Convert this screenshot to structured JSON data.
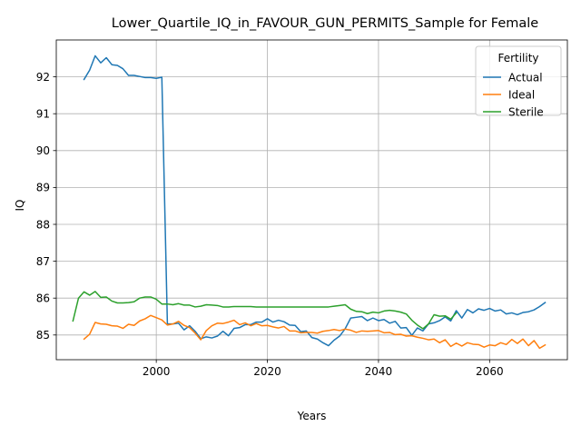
{
  "chart_data": {
    "type": "line",
    "title": "Lower_Quartile_IQ_in_FAVOUR_GUN_PERMITS_Sample for Female",
    "xlabel": "Years",
    "ylabel": "IQ",
    "xlim": [
      1982,
      2074
    ],
    "ylim": [
      84.33,
      93.0
    ],
    "x_ticks": [
      2000,
      2020,
      2040,
      2060
    ],
    "y_ticks": [
      85,
      86,
      87,
      88,
      89,
      90,
      91,
      92
    ],
    "grid": true,
    "legend": {
      "title": "Fertility",
      "position": "top-right"
    },
    "series": [
      {
        "name": "Actual",
        "color": "#1f77b4",
        "points": [
          [
            1987,
            91.93
          ],
          [
            1988,
            92.18
          ],
          [
            1989,
            92.57
          ],
          [
            1990,
            92.38
          ],
          [
            1991,
            92.52
          ],
          [
            1992,
            92.33
          ],
          [
            1993,
            92.31
          ],
          [
            1994,
            92.22
          ],
          [
            1995,
            92.04
          ],
          [
            1996,
            92.04
          ],
          [
            1997,
            92.01
          ],
          [
            1998,
            91.98
          ],
          [
            1999,
            91.98
          ],
          [
            2000,
            91.96
          ],
          [
            2001,
            91.99
          ],
          [
            2002,
            85.3
          ],
          [
            2003,
            85.3
          ],
          [
            2004,
            85.32
          ],
          [
            2005,
            85.14
          ],
          [
            2006,
            85.25
          ],
          [
            2007,
            85.1
          ],
          [
            2008,
            84.9
          ],
          [
            2009,
            84.95
          ],
          [
            2010,
            84.92
          ],
          [
            2011,
            84.97
          ],
          [
            2012,
            85.1
          ],
          [
            2013,
            84.98
          ],
          [
            2014,
            85.18
          ],
          [
            2015,
            85.2
          ],
          [
            2016,
            85.28
          ],
          [
            2017,
            85.28
          ],
          [
            2018,
            85.35
          ],
          [
            2019,
            85.35
          ],
          [
            2020,
            85.44
          ],
          [
            2021,
            85.35
          ],
          [
            2022,
            85.4
          ],
          [
            2023,
            85.36
          ],
          [
            2024,
            85.27
          ],
          [
            2025,
            85.26
          ],
          [
            2026,
            85.09
          ],
          [
            2027,
            85.11
          ],
          [
            2028,
            84.93
          ],
          [
            2029,
            84.89
          ],
          [
            2030,
            84.79
          ],
          [
            2031,
            84.71
          ],
          [
            2032,
            84.86
          ],
          [
            2033,
            84.97
          ],
          [
            2034,
            85.17
          ],
          [
            2035,
            85.46
          ],
          [
            2036,
            85.48
          ],
          [
            2037,
            85.5
          ],
          [
            2038,
            85.39
          ],
          [
            2039,
            85.46
          ],
          [
            2040,
            85.39
          ],
          [
            2041,
            85.42
          ],
          [
            2042,
            85.32
          ],
          [
            2043,
            85.37
          ],
          [
            2044,
            85.19
          ],
          [
            2045,
            85.2
          ],
          [
            2046,
            84.99
          ],
          [
            2047,
            85.19
          ],
          [
            2048,
            85.11
          ],
          [
            2049,
            85.3
          ],
          [
            2050,
            85.33
          ],
          [
            2051,
            85.39
          ],
          [
            2052,
            85.49
          ],
          [
            2053,
            85.38
          ],
          [
            2054,
            85.66
          ],
          [
            2055,
            85.46
          ],
          [
            2056,
            85.69
          ],
          [
            2057,
            85.6
          ],
          [
            2058,
            85.71
          ],
          [
            2059,
            85.67
          ],
          [
            2060,
            85.72
          ],
          [
            2061,
            85.65
          ],
          [
            2062,
            85.68
          ],
          [
            2063,
            85.57
          ],
          [
            2064,
            85.6
          ],
          [
            2065,
            85.55
          ],
          [
            2066,
            85.61
          ],
          [
            2067,
            85.63
          ],
          [
            2068,
            85.68
          ],
          [
            2069,
            85.77
          ],
          [
            2070,
            85.88
          ]
        ]
      },
      {
        "name": "Ideal",
        "color": "#ff7f0e",
        "points": [
          [
            1987,
            84.89
          ],
          [
            1988,
            85.02
          ],
          [
            1989,
            85.34
          ],
          [
            1990,
            85.3
          ],
          [
            1991,
            85.29
          ],
          [
            1992,
            85.25
          ],
          [
            1993,
            85.24
          ],
          [
            1994,
            85.18
          ],
          [
            1995,
            85.29
          ],
          [
            1996,
            85.26
          ],
          [
            1997,
            85.38
          ],
          [
            1998,
            85.44
          ],
          [
            1999,
            85.53
          ],
          [
            2000,
            85.47
          ],
          [
            2001,
            85.41
          ],
          [
            2002,
            85.27
          ],
          [
            2003,
            85.3
          ],
          [
            2004,
            85.37
          ],
          [
            2005,
            85.26
          ],
          [
            2006,
            85.2
          ],
          [
            2007,
            85.05
          ],
          [
            2008,
            84.87
          ],
          [
            2009,
            85.12
          ],
          [
            2010,
            85.25
          ],
          [
            2011,
            85.32
          ],
          [
            2012,
            85.31
          ],
          [
            2013,
            85.35
          ],
          [
            2014,
            85.4
          ],
          [
            2015,
            85.28
          ],
          [
            2016,
            85.33
          ],
          [
            2017,
            85.25
          ],
          [
            2018,
            85.31
          ],
          [
            2019,
            85.25
          ],
          [
            2020,
            85.26
          ],
          [
            2021,
            85.22
          ],
          [
            2022,
            85.19
          ],
          [
            2023,
            85.23
          ],
          [
            2024,
            85.11
          ],
          [
            2025,
            85.11
          ],
          [
            2026,
            85.06
          ],
          [
            2027,
            85.07
          ],
          [
            2028,
            85.07
          ],
          [
            2029,
            85.05
          ],
          [
            2030,
            85.1
          ],
          [
            2031,
            85.12
          ],
          [
            2032,
            85.15
          ],
          [
            2033,
            85.12
          ],
          [
            2034,
            85.16
          ],
          [
            2035,
            85.13
          ],
          [
            2036,
            85.07
          ],
          [
            2037,
            85.11
          ],
          [
            2038,
            85.1
          ],
          [
            2039,
            85.11
          ],
          [
            2040,
            85.12
          ],
          [
            2041,
            85.06
          ],
          [
            2042,
            85.07
          ],
          [
            2043,
            85.01
          ],
          [
            2044,
            85.02
          ],
          [
            2045,
            84.97
          ],
          [
            2046,
            84.98
          ],
          [
            2047,
            84.94
          ],
          [
            2048,
            84.91
          ],
          [
            2049,
            84.87
          ],
          [
            2050,
            84.89
          ],
          [
            2051,
            84.79
          ],
          [
            2052,
            84.87
          ],
          [
            2053,
            84.69
          ],
          [
            2054,
            84.78
          ],
          [
            2055,
            84.7
          ],
          [
            2056,
            84.79
          ],
          [
            2057,
            84.75
          ],
          [
            2058,
            84.74
          ],
          [
            2059,
            84.67
          ],
          [
            2060,
            84.73
          ],
          [
            2061,
            84.71
          ],
          [
            2062,
            84.79
          ],
          [
            2063,
            84.74
          ],
          [
            2064,
            84.88
          ],
          [
            2065,
            84.77
          ],
          [
            2066,
            84.89
          ],
          [
            2067,
            84.71
          ],
          [
            2068,
            84.85
          ],
          [
            2069,
            84.64
          ],
          [
            2070,
            84.73
          ]
        ]
      },
      {
        "name": "Sterile",
        "color": "#2ca02c",
        "points": [
          [
            1985,
            85.38
          ],
          [
            1986,
            86.0
          ],
          [
            1987,
            86.17
          ],
          [
            1988,
            86.08
          ],
          [
            1989,
            86.18
          ],
          [
            1990,
            86.02
          ],
          [
            1991,
            86.03
          ],
          [
            1992,
            85.92
          ],
          [
            1993,
            85.87
          ],
          [
            1994,
            85.87
          ],
          [
            1995,
            85.88
          ],
          [
            1996,
            85.9
          ],
          [
            1997,
            86.0
          ],
          [
            1998,
            86.03
          ],
          [
            1999,
            86.03
          ],
          [
            2000,
            85.97
          ],
          [
            2001,
            85.84
          ],
          [
            2002,
            85.84
          ],
          [
            2003,
            85.82
          ],
          [
            2004,
            85.85
          ],
          [
            2005,
            85.81
          ],
          [
            2006,
            85.81
          ],
          [
            2007,
            85.76
          ],
          [
            2008,
            85.78
          ],
          [
            2009,
            85.82
          ],
          [
            2010,
            85.81
          ],
          [
            2011,
            85.8
          ],
          [
            2012,
            85.76
          ],
          [
            2013,
            85.76
          ],
          [
            2014,
            85.77
          ],
          [
            2015,
            85.77
          ],
          [
            2016,
            85.77
          ],
          [
            2017,
            85.77
          ],
          [
            2018,
            85.76
          ],
          [
            2019,
            85.76
          ],
          [
            2020,
            85.76
          ],
          [
            2021,
            85.76
          ],
          [
            2022,
            85.76
          ],
          [
            2023,
            85.76
          ],
          [
            2024,
            85.76
          ],
          [
            2025,
            85.76
          ],
          [
            2026,
            85.76
          ],
          [
            2027,
            85.76
          ],
          [
            2028,
            85.76
          ],
          [
            2029,
            85.76
          ],
          [
            2030,
            85.76
          ],
          [
            2031,
            85.76
          ],
          [
            2032,
            85.78
          ],
          [
            2033,
            85.8
          ],
          [
            2034,
            85.82
          ],
          [
            2035,
            85.7
          ],
          [
            2036,
            85.64
          ],
          [
            2037,
            85.63
          ],
          [
            2038,
            85.58
          ],
          [
            2039,
            85.62
          ],
          [
            2040,
            85.6
          ],
          [
            2041,
            85.65
          ],
          [
            2042,
            85.67
          ],
          [
            2043,
            85.65
          ],
          [
            2044,
            85.62
          ],
          [
            2045,
            85.57
          ],
          [
            2046,
            85.4
          ],
          [
            2047,
            85.27
          ],
          [
            2048,
            85.17
          ],
          [
            2049,
            85.3
          ],
          [
            2050,
            85.55
          ],
          [
            2051,
            85.51
          ],
          [
            2052,
            85.52
          ],
          [
            2053,
            85.43
          ],
          [
            2054,
            85.6
          ]
        ]
      }
    ]
  }
}
